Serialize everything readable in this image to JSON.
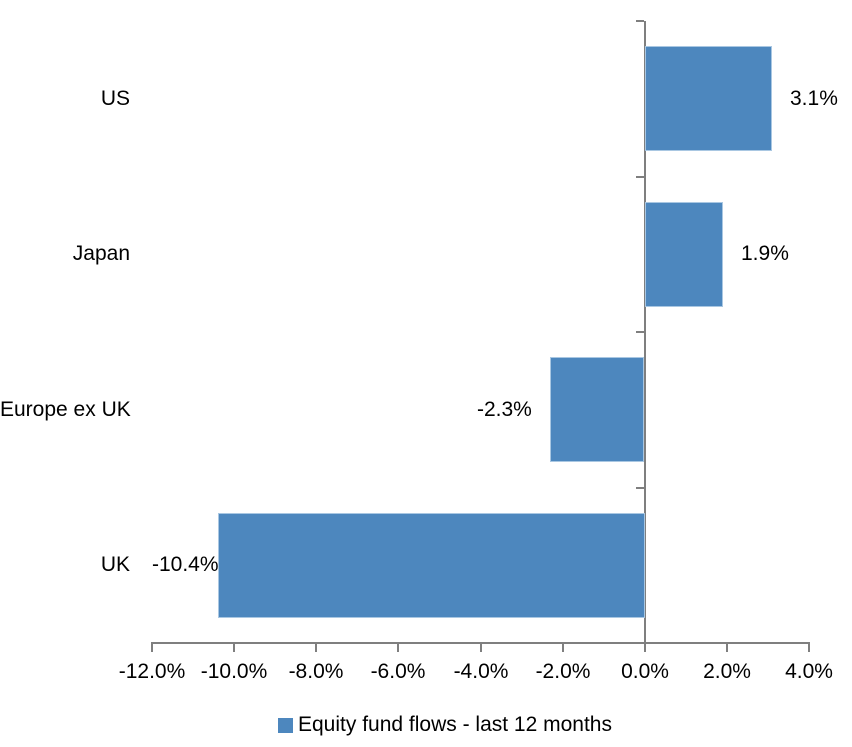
{
  "chart_data": {
    "type": "bar",
    "orientation": "horizontal",
    "title": "",
    "categories": [
      "US",
      "Japan",
      "Europe ex UK",
      "UK"
    ],
    "series": [
      {
        "name": "Equity fund flows - last 12 months",
        "values": [
          3.1,
          1.9,
          -2.3,
          -10.4
        ],
        "labels": [
          "3.1%",
          "1.9%",
          "-2.3%",
          "-10.4%"
        ]
      }
    ],
    "xlabel": "",
    "ylabel": "",
    "xlim": [
      -12,
      4
    ],
    "x_ticks": [
      -12,
      -10,
      -8,
      -6,
      -4,
      -2,
      0,
      2,
      4
    ],
    "x_tick_labels": [
      "-12.0%",
      "-10.0%",
      "-8.0%",
      "-6.0%",
      "-4.0%",
      "-2.0%",
      "0.0%",
      "2.0%",
      "4.0%"
    ],
    "grid": false,
    "legend_position": "bottom",
    "legend": {
      "label": "Equity fund flows - last 12 months",
      "swatch_color": "#4d87be"
    },
    "colors": {
      "bar_fill": "#4d87be",
      "bar_border": "#a9c7e2",
      "axis": "#7f7f7f",
      "text": "#000000",
      "background": "#ffffff"
    }
  }
}
